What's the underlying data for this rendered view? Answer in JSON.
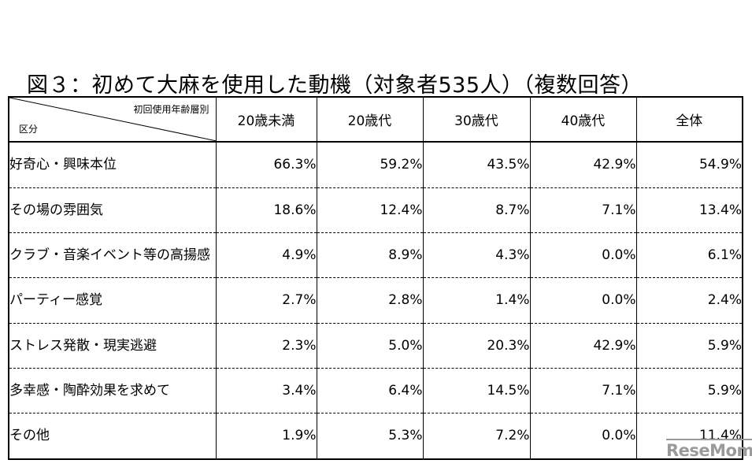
{
  "title": "図３：初めて大麻を使用した動機（対象者535人）（複数回答）",
  "table": {
    "corner_top": "初回使用年齢層別",
    "corner_bottom": "区分",
    "columns": [
      "20歳未満",
      "20歳代",
      "30歳代",
      "40歳代",
      "全体"
    ],
    "rows": [
      {
        "label": "好奇心・興味本位",
        "values": [
          "66.3%",
          "59.2%",
          "43.5%",
          "42.9%",
          "54.9%"
        ]
      },
      {
        "label": "その場の雰囲気",
        "values": [
          "18.6%",
          "12.4%",
          "8.7%",
          "7.1%",
          "13.4%"
        ]
      },
      {
        "label": "クラブ・音楽イベント等の高揚感",
        "values": [
          "4.9%",
          "8.9%",
          "4.3%",
          "0.0%",
          "6.1%"
        ]
      },
      {
        "label": "パーティー感覚",
        "values": [
          "2.7%",
          "2.8%",
          "1.4%",
          "0.0%",
          "2.4%"
        ]
      },
      {
        "label": "ストレス発散・現実逃避",
        "values": [
          "2.3%",
          "5.0%",
          "20.3%",
          "42.9%",
          "5.9%"
        ]
      },
      {
        "label": "多幸感・陶酔効果を求めて",
        "values": [
          "3.4%",
          "6.4%",
          "14.5%",
          "7.1%",
          "5.9%"
        ]
      },
      {
        "label": "その他",
        "values": [
          "1.9%",
          "5.3%",
          "7.2%",
          "0.0%",
          "11.4%"
        ]
      }
    ]
  },
  "logo": "ReseMom"
}
